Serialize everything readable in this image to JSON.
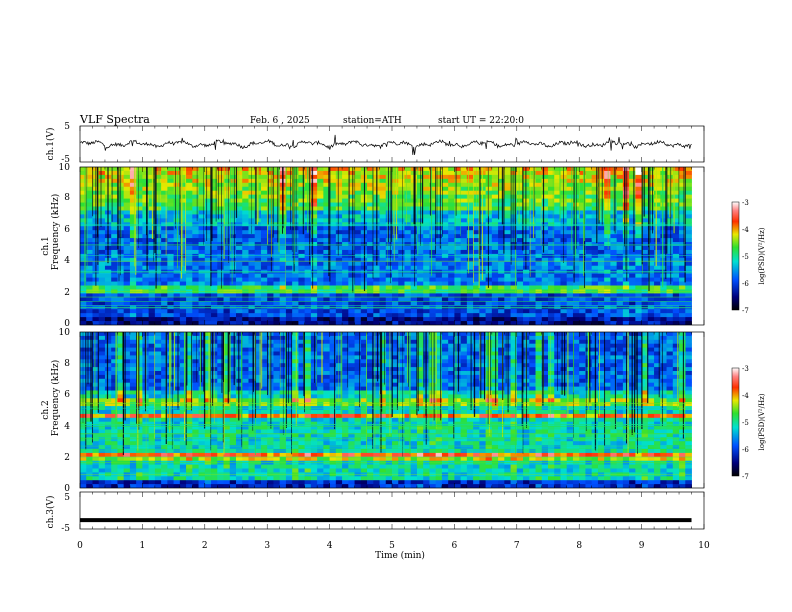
{
  "header": {
    "title": "VLF Spectra",
    "date": "Feb. 6 , 2025",
    "station": "station=ATH",
    "start": "start UT = 22:20:0"
  },
  "chart_data": [
    {
      "type": "line",
      "id": "ch1-waveform",
      "ylabel": "ch.1(V)",
      "ylim": [
        -5,
        5
      ],
      "yticks": [
        "5",
        "-5"
      ],
      "xlim": [
        0,
        10
      ],
      "description_series": {
        "name": "",
        "approx_level": 0,
        "noise_amplitude": 0.6,
        "spike_amplitude": 2.5
      },
      "color": "#000000"
    },
    {
      "type": "heatmap",
      "id": "ch1-spectrogram",
      "ylabel": "ch.1",
      "ylabel2": "Frequency (kHz)",
      "ylim": [
        0,
        10
      ],
      "yticks": [
        "0",
        "2",
        "4",
        "6",
        "8",
        "10"
      ],
      "xlim": [
        0,
        9.8
      ],
      "colorbar": {
        "label": "log(PSD)(V²/Hz)",
        "range": [
          -7,
          -3
        ],
        "ticks": [
          "-3",
          "-4",
          "-5",
          "-6",
          "-7"
        ]
      }
    },
    {
      "type": "heatmap",
      "id": "ch2-spectrogram",
      "ylabel": "ch.2",
      "ylabel2": "Frequency (kHz)",
      "ylim": [
        0,
        10
      ],
      "yticks": [
        "0",
        "2",
        "4",
        "6",
        "8",
        "10"
      ],
      "xlim": [
        0,
        9.8
      ],
      "colorbar": {
        "label": "log(PSD)(V²/Hz)",
        "range": [
          -7,
          -3
        ],
        "ticks": [
          "-3",
          "-4",
          "-5",
          "-6",
          "-7"
        ]
      }
    },
    {
      "type": "line",
      "id": "ch3-waveform",
      "ylabel": "ch.3(V)",
      "ylim": [
        -5,
        5
      ],
      "yticks": [
        "5",
        "-5"
      ],
      "xlim": [
        0,
        10
      ],
      "xlabel": "Time (min)",
      "xticks": [
        "0",
        "1",
        "2",
        "3",
        "4",
        "5",
        "6",
        "7",
        "8",
        "9",
        "10"
      ],
      "description_series": {
        "name": "",
        "approx_level": -2.6
      },
      "color": "#000000"
    }
  ]
}
